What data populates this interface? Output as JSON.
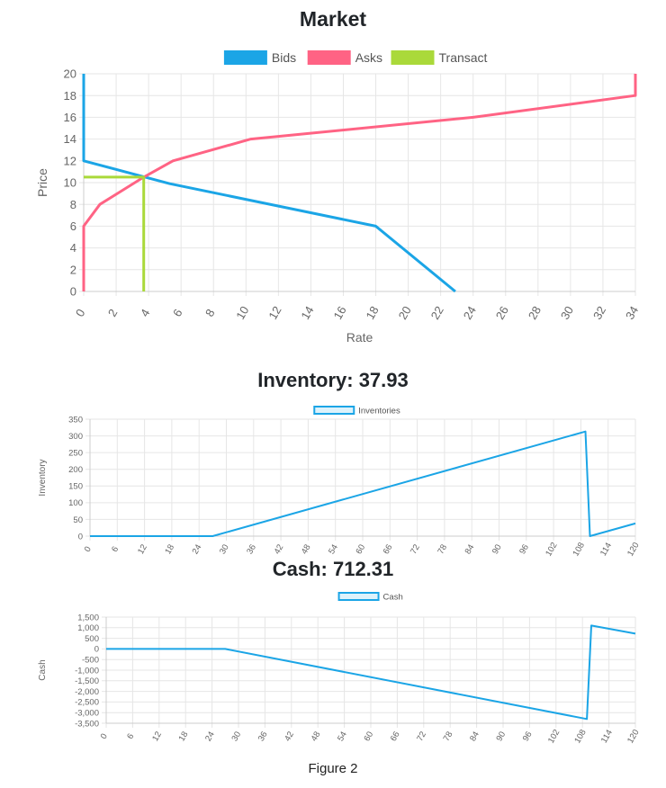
{
  "charts": {
    "market_title": "Market",
    "inventory_title": "Inventory: 37.93",
    "cash_title": "Cash: 712.31"
  },
  "caption": "Figure 2",
  "colors": {
    "bids": "#1ba5e6",
    "asks": "#ff6384",
    "transact": "#aad93a",
    "grid": "#e6e6e6",
    "axis": "#cccccc"
  },
  "chart_data": [
    {
      "type": "line",
      "title": "Market",
      "xlabel": "Rate",
      "ylabel": "Price",
      "xlim": [
        0,
        34
      ],
      "ylim": [
        0,
        20
      ],
      "xticks": [
        0,
        2,
        4,
        6,
        8,
        10,
        12,
        14,
        16,
        18,
        20,
        22,
        24,
        26,
        28,
        30,
        32,
        34
      ],
      "yticks": [
        0,
        2,
        4,
        6,
        8,
        10,
        12,
        14,
        16,
        18,
        20
      ],
      "grid": true,
      "legend_position": "top",
      "series": [
        {
          "name": "Bids",
          "points": [
            [
              0,
              20
            ],
            [
              0,
              12
            ],
            [
              5.3,
              9.9
            ],
            [
              18,
              6
            ],
            [
              22.9,
              0
            ]
          ]
        },
        {
          "name": "Asks",
          "points": [
            [
              0,
              0
            ],
            [
              0,
              6
            ],
            [
              1,
              8
            ],
            [
              3.7,
              10.5
            ],
            [
              5.5,
              12
            ],
            [
              10.3,
              14
            ],
            [
              24,
              16
            ],
            [
              34,
              18
            ],
            [
              34,
              20
            ]
          ]
        },
        {
          "name": "Transact",
          "points": [
            [
              0,
              10.5
            ],
            [
              3.7,
              10.5
            ],
            [
              3.7,
              0
            ]
          ]
        }
      ]
    },
    {
      "type": "line",
      "title": "Inventory: 37.93",
      "xlabel": "",
      "ylabel": "Inventory",
      "xlim": [
        0,
        120
      ],
      "ylim": [
        0,
        350
      ],
      "xticks": [
        0,
        6,
        12,
        18,
        24,
        30,
        36,
        42,
        48,
        54,
        60,
        66,
        72,
        78,
        84,
        90,
        96,
        102,
        108,
        114,
        120
      ],
      "yticks": [
        0,
        50,
        100,
        150,
        200,
        250,
        300,
        350
      ],
      "grid": true,
      "legend_position": "top",
      "series": [
        {
          "name": "Inventories",
          "points": [
            [
              0,
              0
            ],
            [
              27,
              0
            ],
            [
              109,
              313
            ],
            [
              110,
              0
            ],
            [
              120,
              38
            ]
          ]
        }
      ]
    },
    {
      "type": "line",
      "title": "Cash: 712.31",
      "xlabel": "",
      "ylabel": "Cash",
      "xlim": [
        0,
        120
      ],
      "ylim": [
        -3500,
        1500
      ],
      "xticks": [
        0,
        6,
        12,
        18,
        24,
        30,
        36,
        42,
        48,
        54,
        60,
        66,
        72,
        78,
        84,
        90,
        96,
        102,
        108,
        114,
        120
      ],
      "yticks": [
        -3500,
        -3000,
        -2500,
        -2000,
        -1500,
        -1000,
        -500,
        0,
        500,
        1000,
        1500
      ],
      "ytick_labels": [
        "-3,500",
        "-3,000",
        "-2,500",
        "-2,000",
        "-1,500",
        "-1,000",
        "-500",
        "0",
        "500",
        "1,000",
        "1,500"
      ],
      "grid": true,
      "legend_position": "top",
      "series": [
        {
          "name": "Cash",
          "points": [
            [
              0,
              0
            ],
            [
              27,
              0
            ],
            [
              109,
              -3300
            ],
            [
              110,
              1100
            ],
            [
              120,
              720
            ]
          ]
        }
      ]
    }
  ]
}
